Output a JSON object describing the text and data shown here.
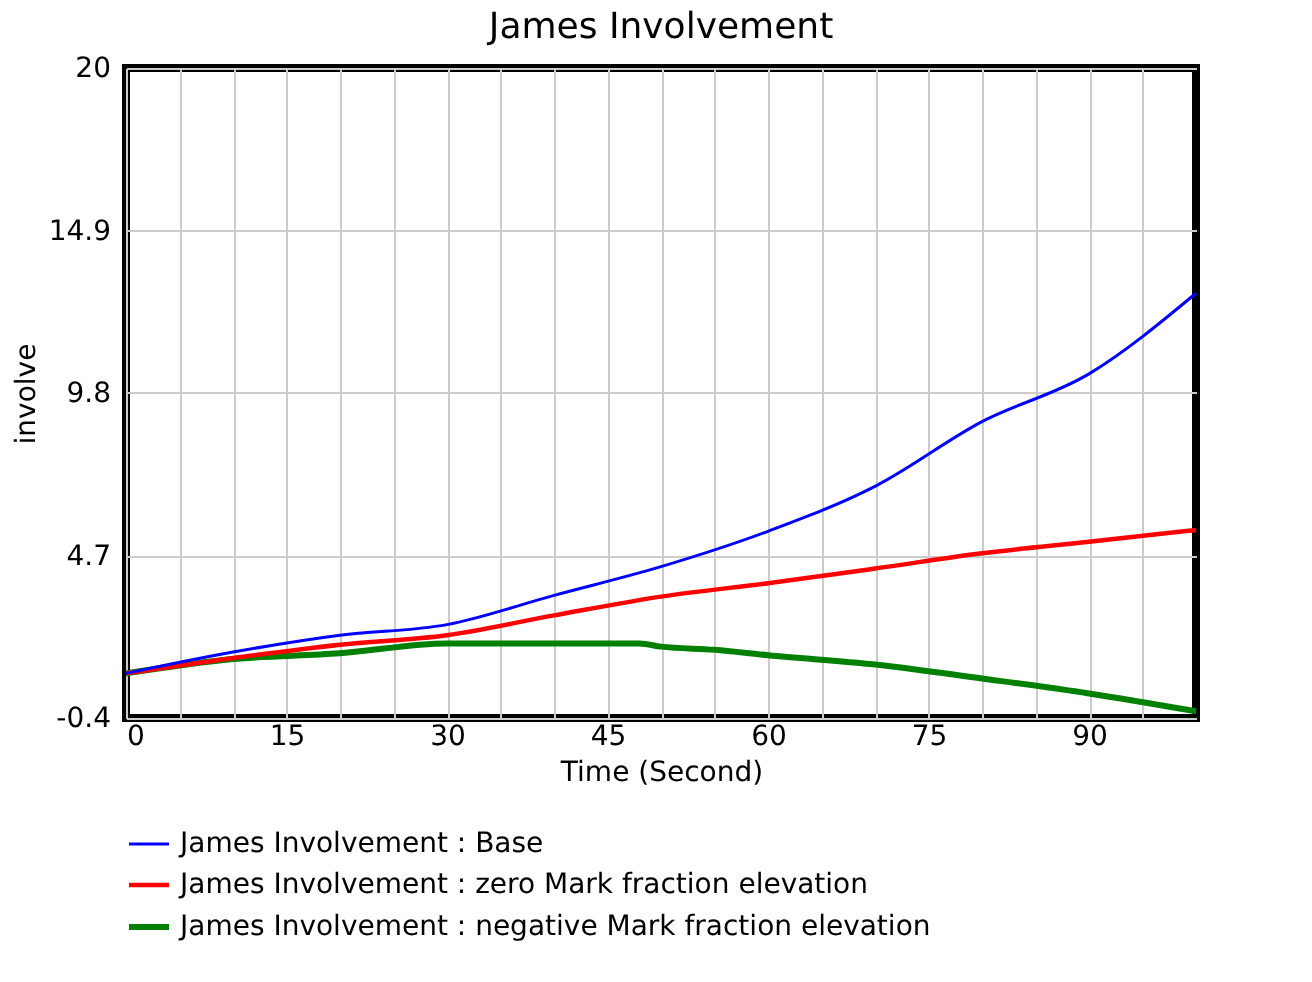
{
  "chart_data": {
    "type": "line",
    "title": "James Involvement",
    "xlabel": "Time (Second)",
    "ylabel": "involve",
    "xlim": [
      0,
      100
    ],
    "ylim": [
      -0.4,
      20
    ],
    "xticks": [
      0,
      {
        "value": 5,
        "label": null
      },
      {
        "value": 10,
        "label": null
      },
      15,
      {
        "value": 20,
        "label": null
      },
      {
        "value": 25,
        "label": null
      },
      30,
      {
        "value": 35,
        "label": null
      },
      {
        "value": 40,
        "label": null
      },
      45,
      {
        "value": 50,
        "label": null
      },
      {
        "value": 55,
        "label": null
      },
      60,
      {
        "value": 65,
        "label": null
      },
      {
        "value": 70,
        "label": null
      },
      75,
      {
        "value": 80,
        "label": null
      },
      {
        "value": 85,
        "label": null
      },
      90,
      {
        "value": 95,
        "label": null
      }
    ],
    "yticks": [
      -0.4,
      4.7,
      9.8,
      14.9,
      20
    ],
    "grid": true,
    "legend": "bottom",
    "marker": "none",
    "line_style": "solid",
    "x": [
      0,
      10,
      20,
      30,
      40,
      50,
      60,
      70,
      80,
      90,
      100
    ],
    "series": [
      {
        "name": "James Involvement : Base",
        "color": "#0000ff",
        "values": [
          1.0,
          1.67,
          2.2,
          2.53,
          3.45,
          4.35,
          5.46,
          6.87,
          8.9,
          10.4,
          12.93
        ]
      },
      {
        "name": "James Involvement : zero Mark fraction elevation",
        "color": "#ff0000",
        "values": [
          1.0,
          1.48,
          1.9,
          2.2,
          2.82,
          3.41,
          3.83,
          4.29,
          4.77,
          5.13,
          5.5
        ]
      },
      {
        "name": "James Involvement : negative Mark fraction elevation",
        "color": "#008000",
        "x": [
          0,
          10,
          20,
          30,
          40,
          48,
          50,
          55,
          60,
          70,
          80,
          90,
          100
        ],
        "values": [
          1.0,
          1.45,
          1.63,
          1.94,
          1.94,
          1.94,
          1.84,
          1.74,
          1.57,
          1.28,
          0.84,
          0.37,
          -0.19
        ]
      }
    ]
  }
}
